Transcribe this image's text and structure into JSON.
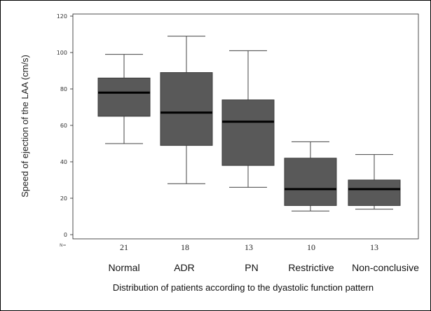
{
  "chart_data": {
    "type": "box",
    "title": "",
    "ylabel": "Speed of ejection of the LAA (cm/s)",
    "xlabel": "Distribution of patients according to the dyastolic function pattern",
    "n_axis_label": "N=",
    "ylim": [
      0,
      120
    ],
    "yticks": [
      0,
      20,
      40,
      60,
      80,
      100,
      120
    ],
    "categories": [
      "Normal",
      "ADR",
      "PN",
      "Restrictive",
      "Non-conclusive"
    ],
    "n": [
      "21",
      "18",
      "13",
      "10",
      "13"
    ],
    "boxes": [
      {
        "whisker_low": 50,
        "q1": 65,
        "median": 78,
        "q3": 86,
        "whisker_high": 99
      },
      {
        "whisker_low": 28,
        "q1": 49,
        "median": 67,
        "q3": 89,
        "whisker_high": 109
      },
      {
        "whisker_low": 26,
        "q1": 38,
        "median": 62,
        "q3": 74,
        "whisker_high": 101
      },
      {
        "whisker_low": 13,
        "q1": 16,
        "median": 25,
        "q3": 42,
        "whisker_high": 51
      },
      {
        "whisker_low": 14,
        "q1": 16,
        "median": 25,
        "q3": 30,
        "whisker_high": 44
      }
    ],
    "box_color": "#595959",
    "median_color": "#000000",
    "grid": false
  }
}
